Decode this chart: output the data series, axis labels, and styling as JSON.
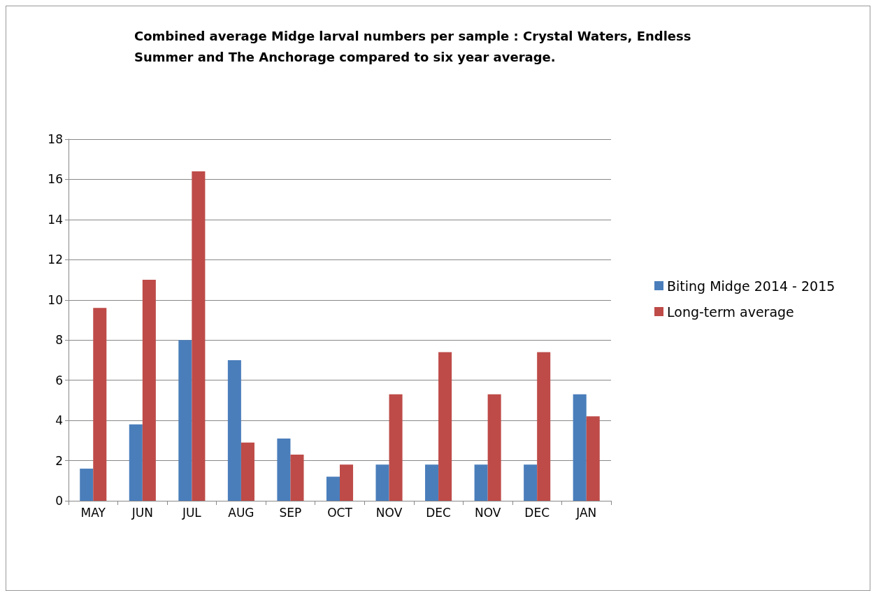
{
  "chart_data": {
    "type": "bar",
    "title": "Combined average Midge larval numbers per sample : Crystal Waters, Endless Summer and The Anchorage compared to six year average.",
    "categories": [
      "MAY",
      "JUN",
      "JUL",
      "AUG",
      "SEP",
      "OCT",
      "NOV",
      "DEC",
      "NOV",
      "DEC",
      "JAN"
    ],
    "series": [
      {
        "name": "Biting Midge 2014 - 2015",
        "color": "#4a7ebb",
        "values": [
          1.6,
          3.8,
          8.0,
          7.0,
          3.1,
          1.2,
          1.8,
          1.8,
          1.8,
          1.8,
          5.3
        ]
      },
      {
        "name": "Long-term average",
        "color": "#be4b48",
        "values": [
          9.6,
          11.0,
          16.4,
          2.9,
          2.3,
          1.8,
          5.3,
          7.4,
          5.3,
          7.4,
          4.2
        ]
      }
    ],
    "ylim": [
      0,
      18
    ],
    "yticks": [
      0,
      2,
      4,
      6,
      8,
      10,
      12,
      14,
      16,
      18
    ],
    "grid": "y",
    "legend": "right"
  }
}
